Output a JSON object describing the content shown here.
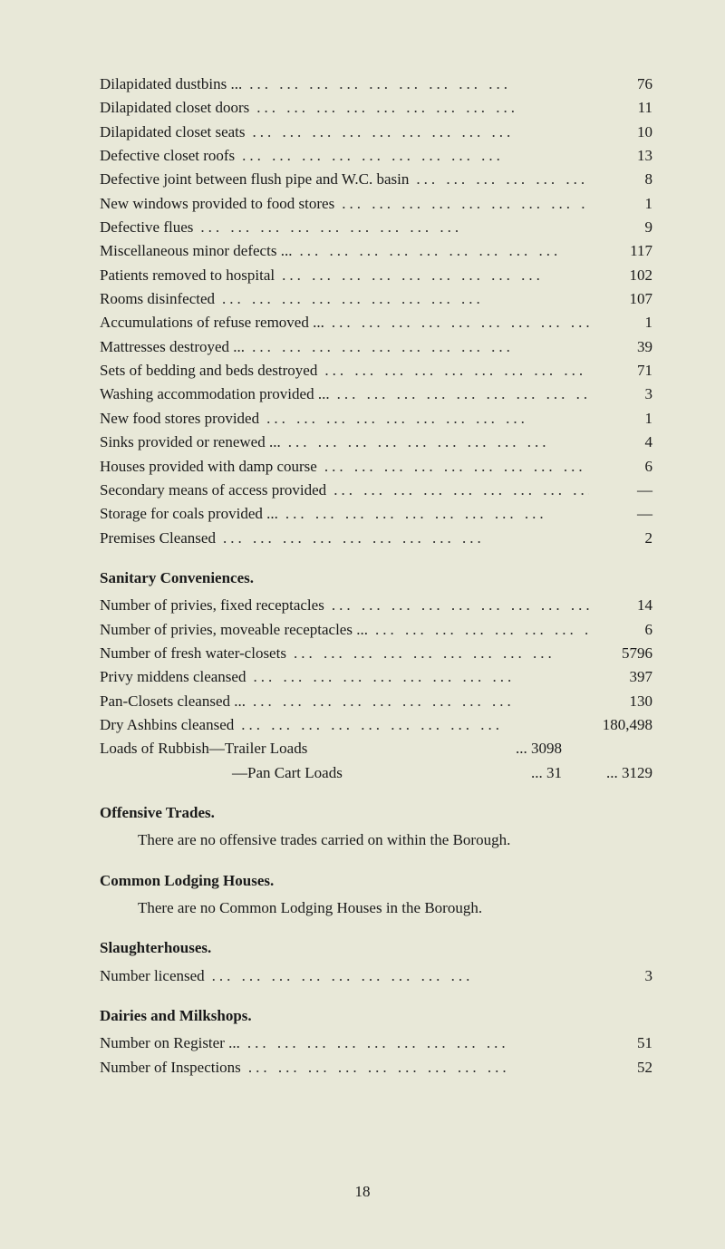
{
  "rows1": [
    {
      "label": "Dilapidated dustbins ...",
      "value": "76"
    },
    {
      "label": "Dilapidated closet doors",
      "value": "11"
    },
    {
      "label": "Dilapidated closet seats",
      "value": "10"
    },
    {
      "label": "Defective closet roofs",
      "value": "13"
    },
    {
      "label": "Defective joint between flush pipe and W.C. basin",
      "value": "8"
    },
    {
      "label": "New windows provided to food stores",
      "value": "1"
    },
    {
      "label": "Defective flues",
      "value": "9"
    },
    {
      "label": "Miscellaneous minor defects ...",
      "value": "117"
    },
    {
      "label": "Patients removed to hospital",
      "value": "102"
    },
    {
      "label": "Rooms disinfected",
      "value": "107"
    },
    {
      "label": "Accumulations of refuse removed ...",
      "value": "1"
    },
    {
      "label": "Mattresses destroyed ...",
      "value": "39"
    },
    {
      "label": "Sets of bedding and beds destroyed",
      "value": "71"
    },
    {
      "label": "Washing accommodation provided ...",
      "value": "3"
    },
    {
      "label": "New food stores provided",
      "value": "1"
    },
    {
      "label": "Sinks provided or renewed ...",
      "value": "4"
    },
    {
      "label": "Houses provided with damp course",
      "value": "6"
    },
    {
      "label": "Secondary means of access provided",
      "value": "—"
    },
    {
      "label": "Storage for coals provided ...",
      "value": "—"
    },
    {
      "label": "Premises Cleansed",
      "value": "2"
    }
  ],
  "sanitaryHead": "Sanitary Conveniences.",
  "rows2": [
    {
      "label": "Number of privies, fixed receptacles",
      "value": "14"
    },
    {
      "label": "Number of privies, moveable receptacles ...",
      "value": "6"
    },
    {
      "label": "Number of fresh water-closets",
      "value": "5796"
    },
    {
      "label": "Privy middens cleansed",
      "value": "397"
    },
    {
      "label": "Pan-Closets cleansed ...",
      "value": "130"
    },
    {
      "label": "Dry Ashbins cleansed",
      "value": "180,498"
    }
  ],
  "loads": {
    "trailerLabel": "Loads of Rubbish—Trailer Loads",
    "trailerMid": "...  3098",
    "panLabel": "—Pan Cart Loads",
    "panMid": "...    31",
    "panValue": "...   3129"
  },
  "offensiveHead": "Offensive Trades.",
  "offensivePara": "There are no offensive trades carried on within the Borough.",
  "lodgingHead": "Common Lodging Houses.",
  "lodgingPara": "There are no Common Lodging Houses in the Borough.",
  "slaughterHead": "Slaughterhouses.",
  "slaughterRow": {
    "label": "Number licensed",
    "value": "3"
  },
  "dairyHead": "Dairies and Milkshops.",
  "rows3": [
    {
      "label": "Number on Register ...",
      "value": "51"
    },
    {
      "label": "Number of Inspections",
      "value": "52"
    }
  ],
  "pageNum": "18",
  "dotfill": "...   ...   ...   ...   ...   ...   ...   ...   ..."
}
